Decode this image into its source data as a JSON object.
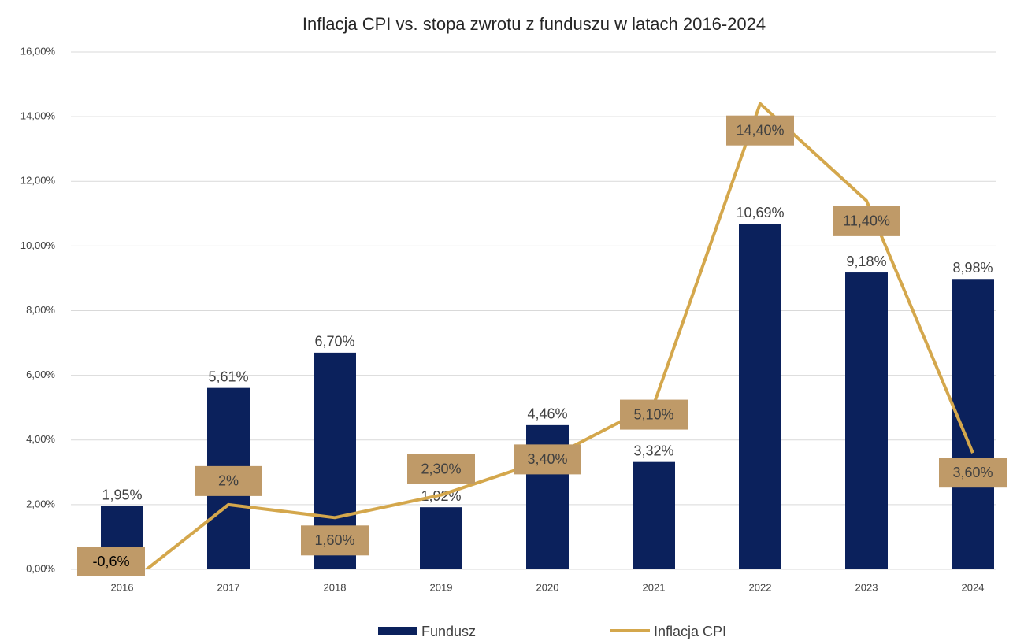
{
  "chart_data": {
    "type": "bar+line",
    "title": "Inflacja CPI vs. stopa zwrotu z funduszu w latach 2016-2024",
    "categories": [
      "2016",
      "2017",
      "2018",
      "2019",
      "2020",
      "2021",
      "2022",
      "2023",
      "2024"
    ],
    "series": [
      {
        "name": "Fundusz",
        "type": "bar",
        "color": "#0b215c",
        "values": [
          1.95,
          5.61,
          6.7,
          1.92,
          4.46,
          3.32,
          10.69,
          9.18,
          8.98
        ],
        "value_labels": [
          "1,95%",
          "5,61%",
          "6,70%",
          "1,92%",
          "4,46%",
          "3,32%",
          "10,69%",
          "9,18%",
          "8,98%"
        ]
      },
      {
        "name": "Inflacja CPI",
        "type": "line",
        "color": "#d4a74c",
        "label_fill": "#bf9a68",
        "values": [
          -0.6,
          2,
          1.6,
          2.3,
          3.4,
          5.1,
          14.4,
          11.4,
          3.6
        ],
        "value_labels": [
          "-0,6%",
          "2%",
          "1,60%",
          "2,30%",
          "3,40%",
          "5,10%",
          "14,40%",
          "11,40%",
          "3,60%"
        ]
      }
    ],
    "ylim": [
      0,
      16
    ],
    "yticks": [
      {
        "value": 0,
        "label": "0,00%"
      },
      {
        "value": 2,
        "label": "2,00%"
      },
      {
        "value": 4,
        "label": "4,00%"
      },
      {
        "value": 6,
        "label": "6,00%"
      },
      {
        "value": 8,
        "label": "8,00%"
      },
      {
        "value": 10,
        "label": "10,00%"
      },
      {
        "value": 12,
        "label": "12,00%"
      },
      {
        "value": 14,
        "label": "14,00%"
      },
      {
        "value": 16,
        "label": "16,00%"
      }
    ],
    "grid": true,
    "legend": "bottom"
  }
}
